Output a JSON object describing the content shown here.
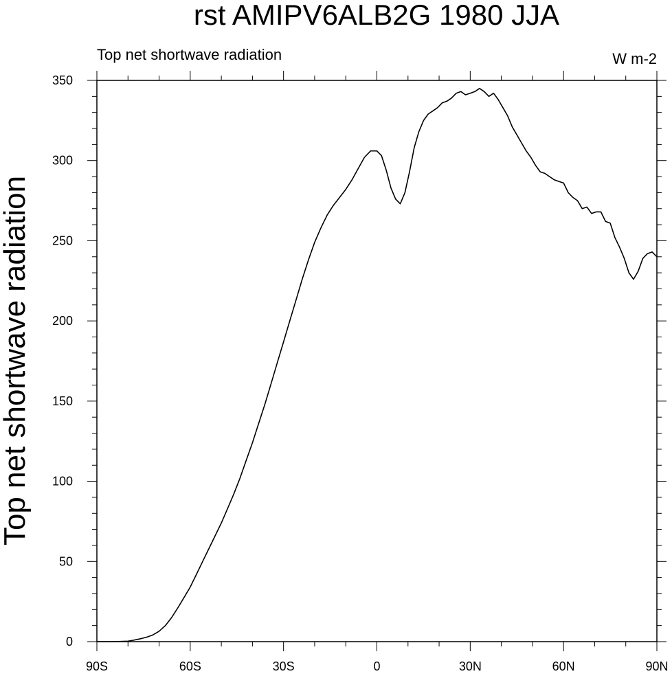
{
  "chart_data": {
    "type": "line",
    "title": "rst AMIPV6ALB2G 1980 JJA",
    "left_string": "Top net shortwave radiation",
    "right_string": "W m-2",
    "xlabel": "",
    "ylabel": "Top net shortwave radiation",
    "xlim": [
      -90,
      90
    ],
    "ylim": [
      0,
      350
    ],
    "grid": false,
    "x_ticks": [
      {
        "value": -90,
        "label": "90S"
      },
      {
        "value": -60,
        "label": "60S"
      },
      {
        "value": -30,
        "label": "30S"
      },
      {
        "value": 0,
        "label": "0"
      },
      {
        "value": 30,
        "label": "30N"
      },
      {
        "value": 60,
        "label": "60N"
      },
      {
        "value": 90,
        "label": "90N"
      }
    ],
    "y_ticks": [
      {
        "value": 0,
        "label": "0"
      },
      {
        "value": 50,
        "label": "50"
      },
      {
        "value": 100,
        "label": "100"
      },
      {
        "value": 150,
        "label": "150"
      },
      {
        "value": 200,
        "label": "200"
      },
      {
        "value": 250,
        "label": "250"
      },
      {
        "value": 300,
        "label": "300"
      },
      {
        "value": 350,
        "label": "350"
      }
    ],
    "series": [
      {
        "color": "#000000",
        "points": [
          [
            -90,
            0
          ],
          [
            -85,
            0
          ],
          [
            -80,
            0.3
          ],
          [
            -78,
            1
          ],
          [
            -76,
            1.8
          ],
          [
            -74,
            2.8
          ],
          [
            -72,
            4.2
          ],
          [
            -70,
            6.5
          ],
          [
            -68,
            10
          ],
          [
            -66,
            15
          ],
          [
            -64,
            21
          ],
          [
            -62,
            27.5
          ],
          [
            -60,
            34
          ],
          [
            -58,
            42
          ],
          [
            -56,
            50
          ],
          [
            -54,
            58
          ],
          [
            -52,
            66
          ],
          [
            -50,
            74
          ],
          [
            -48,
            83
          ],
          [
            -46,
            92
          ],
          [
            -44,
            102
          ],
          [
            -42,
            113
          ],
          [
            -40,
            124
          ],
          [
            -38,
            136
          ],
          [
            -36,
            148
          ],
          [
            -34,
            161
          ],
          [
            -32,
            174
          ],
          [
            -30,
            187
          ],
          [
            -28,
            200
          ],
          [
            -26,
            213
          ],
          [
            -24,
            226
          ],
          [
            -22,
            238
          ],
          [
            -20,
            249
          ],
          [
            -18,
            258
          ],
          [
            -16,
            266
          ],
          [
            -14,
            272
          ],
          [
            -12,
            277
          ],
          [
            -10,
            282
          ],
          [
            -8,
            288
          ],
          [
            -6,
            295
          ],
          [
            -4,
            302
          ],
          [
            -2,
            306
          ],
          [
            0,
            306
          ],
          [
            1.5,
            303
          ],
          [
            3,
            294
          ],
          [
            4.5,
            283
          ],
          [
            6,
            276
          ],
          [
            7.5,
            273
          ],
          [
            9,
            280
          ],
          [
            10.5,
            293
          ],
          [
            12,
            308
          ],
          [
            13.5,
            318
          ],
          [
            15,
            325
          ],
          [
            16.5,
            329
          ],
          [
            18,
            331
          ],
          [
            19.5,
            333
          ],
          [
            21,
            336
          ],
          [
            22.5,
            337
          ],
          [
            24,
            339
          ],
          [
            25.5,
            342
          ],
          [
            27,
            343
          ],
          [
            28.5,
            341
          ],
          [
            30,
            342
          ],
          [
            31.5,
            343
          ],
          [
            33,
            345
          ],
          [
            34.5,
            343
          ],
          [
            36,
            340
          ],
          [
            37.5,
            342
          ],
          [
            39,
            338
          ],
          [
            40.5,
            333
          ],
          [
            42,
            328
          ],
          [
            43.5,
            321
          ],
          [
            45,
            316
          ],
          [
            46.5,
            311
          ],
          [
            48,
            306
          ],
          [
            49.5,
            302
          ],
          [
            51,
            297
          ],
          [
            52.5,
            293
          ],
          [
            54,
            292
          ],
          [
            55.5,
            290
          ],
          [
            57,
            288
          ],
          [
            58.5,
            287
          ],
          [
            60,
            286
          ],
          [
            61.5,
            280
          ],
          [
            63,
            277
          ],
          [
            64.5,
            275
          ],
          [
            66,
            270
          ],
          [
            67.5,
            271
          ],
          [
            69,
            267
          ],
          [
            70.5,
            268
          ],
          [
            72,
            268
          ],
          [
            73.5,
            262
          ],
          [
            75,
            261
          ],
          [
            76.5,
            252
          ],
          [
            78,
            246
          ],
          [
            79.5,
            239
          ],
          [
            81,
            230
          ],
          [
            82.5,
            226
          ],
          [
            84,
            231
          ],
          [
            85.5,
            239
          ],
          [
            87,
            242
          ],
          [
            88.5,
            243
          ],
          [
            90,
            240
          ]
        ]
      }
    ]
  }
}
